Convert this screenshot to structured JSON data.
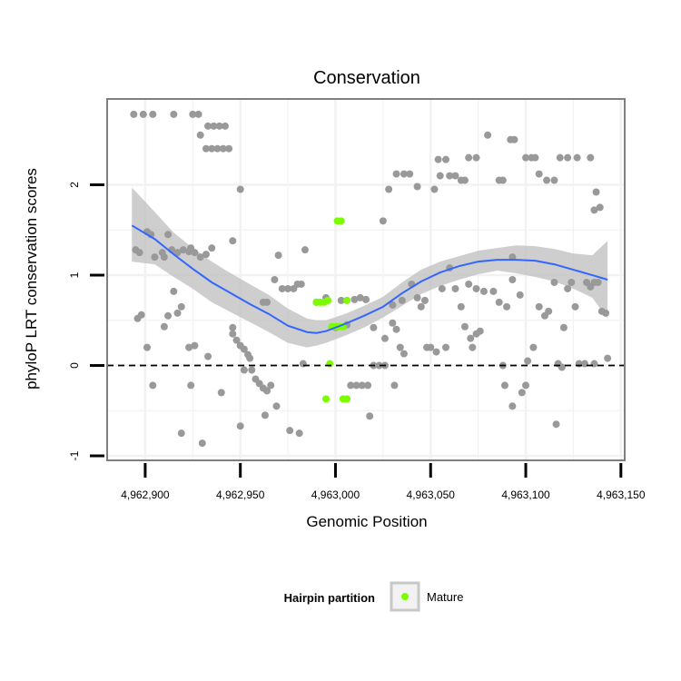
{
  "chart_data": {
    "type": "scatter",
    "title": "Conservation",
    "xlabel": "Genomic Position",
    "ylabel": "phyloP LRT conservation scores",
    "xlim": [
      4962880,
      4963152
    ],
    "ylim": [
      -1.05,
      2.95
    ],
    "x_ticks": [
      {
        "value": 4962900,
        "label": "4,962,900"
      },
      {
        "value": 4962950,
        "label": "4,962,950"
      },
      {
        "value": 4963000,
        "label": "4,963,000"
      },
      {
        "value": 4963050,
        "label": "4,963,050"
      },
      {
        "value": 4963100,
        "label": "4,963,100"
      },
      {
        "value": 4963150,
        "label": "4,963,150"
      }
    ],
    "y_ticks": [
      {
        "value": -1,
        "label": "-1"
      },
      {
        "value": 0,
        "label": "0"
      },
      {
        "value": 1,
        "label": "1"
      },
      {
        "value": 2,
        "label": "2"
      }
    ],
    "grid": true,
    "reference_line": {
      "y": 0,
      "style": "dashed"
    },
    "legend": {
      "title": "Hairpin partition",
      "position": "bottom",
      "items": [
        {
          "label": "Mature",
          "color": "#7CFC00"
        }
      ]
    },
    "colors": {
      "points": "#999999",
      "mature": "#7CFC00",
      "smooth": "#3366FF",
      "ribbon": "#BEBEBE",
      "panel_border": "#7f7f7f",
      "grid": "#F2F2F2"
    },
    "series": [
      {
        "kind": "points",
        "color": "#999999",
        "points": [
          [
            4962894,
            2.78
          ],
          [
            4962899,
            2.78
          ],
          [
            4962904,
            2.78
          ],
          [
            4962915,
            2.78
          ],
          [
            4962925,
            2.78
          ],
          [
            4962928,
            2.78
          ],
          [
            4962933,
            2.65
          ],
          [
            4962936,
            2.65
          ],
          [
            4962939,
            2.65
          ],
          [
            4962942,
            2.65
          ],
          [
            4962929,
            2.55
          ],
          [
            4962932,
            2.4
          ],
          [
            4962935,
            2.4
          ],
          [
            4962938,
            2.4
          ],
          [
            4962941,
            2.4
          ],
          [
            4962944,
            2.4
          ],
          [
            4962950,
            1.95
          ],
          [
            4962946,
            1.38
          ],
          [
            4962912,
            1.45
          ],
          [
            4962924,
            1.3
          ],
          [
            4962935,
            1.3
          ],
          [
            4962895,
            1.28
          ],
          [
            4962897,
            1.25
          ],
          [
            4962901,
            1.48
          ],
          [
            4962903,
            1.45
          ],
          [
            4962909,
            1.25
          ],
          [
            4962914,
            1.28
          ],
          [
            4962917,
            1.25
          ],
          [
            4962920,
            1.28
          ],
          [
            4962923,
            1.26
          ],
          [
            4962926,
            1.25
          ],
          [
            4962929,
            1.2
          ],
          [
            4962932,
            1.23
          ],
          [
            4962905,
            1.2
          ],
          [
            4962910,
            1.2
          ],
          [
            4962912,
            0.55
          ],
          [
            4962917,
            0.58
          ],
          [
            4962915,
            0.82
          ],
          [
            4962896,
            0.52
          ],
          [
            4962898,
            0.56
          ],
          [
            4962901,
            0.2
          ],
          [
            4962904,
            -0.22
          ],
          [
            4962910,
            0.43
          ],
          [
            4962919,
            0.65
          ],
          [
            4962923,
            0.2
          ],
          [
            4962926,
            0.22
          ],
          [
            4962933,
            0.1
          ],
          [
            4962924,
            -0.22
          ],
          [
            4962919,
            -0.75
          ],
          [
            4962930,
            -0.86
          ],
          [
            4962940,
            -0.3
          ],
          [
            4962950,
            -0.67
          ],
          [
            4962946,
            0.35
          ],
          [
            4962948,
            0.28
          ],
          [
            4962950,
            0.22
          ],
          [
            4962952,
            0.18
          ],
          [
            4962955,
            0.08
          ],
          [
            4962946,
            0.42
          ],
          [
            4962954,
            0.12
          ],
          [
            4962956,
            -0.05
          ],
          [
            4962958,
            -0.15
          ],
          [
            4962960,
            -0.2
          ],
          [
            4962962,
            -0.25
          ],
          [
            4962964,
            -0.28
          ],
          [
            4962966,
            -0.22
          ],
          [
            4962952,
            -0.05
          ],
          [
            4962963,
            -0.55
          ],
          [
            4962969,
            -0.45
          ],
          [
            4962962,
            0.7
          ],
          [
            4962964,
            0.7
          ],
          [
            4962968,
            0.95
          ],
          [
            4962972,
            0.85
          ],
          [
            4962975,
            0.85
          ],
          [
            4962978,
            0.85
          ],
          [
            4962982,
            0.9
          ],
          [
            4962984,
            1.28
          ],
          [
            4962970,
            1.22
          ],
          [
            4962980,
            0.9
          ],
          [
            4962976,
            -0.72
          ],
          [
            4962981,
            -0.75
          ],
          [
            4962990,
            0.7
          ],
          [
            4962983,
            0.02
          ],
          [
            4962995,
            0.75
          ],
          [
            4963000,
            0.42
          ],
          [
            4963006,
            0.45
          ],
          [
            4963010,
            0.73
          ],
          [
            4963013,
            0.75
          ],
          [
            4963016,
            0.73
          ],
          [
            4963003,
            0.72
          ],
          [
            4963008,
            -0.22
          ],
          [
            4963011,
            -0.22
          ],
          [
            4963014,
            -0.22
          ],
          [
            4963017,
            -0.22
          ],
          [
            4963018,
            -0.56
          ],
          [
            4963020,
            0.0
          ],
          [
            4963023,
            0.0
          ],
          [
            4963026,
            0.0
          ],
          [
            4963020,
            0.42
          ],
          [
            4963026,
            0.3
          ],
          [
            4963030,
            0.47
          ],
          [
            4963032,
            0.4
          ],
          [
            4963034,
            0.2
          ],
          [
            4963036,
            0.13
          ],
          [
            4963031,
            -0.22
          ],
          [
            4963025,
            1.6
          ],
          [
            4963028,
            1.95
          ],
          [
            4963032,
            2.12
          ],
          [
            4963036,
            2.12
          ],
          [
            4963039,
            2.12
          ],
          [
            4963043,
            1.98
          ],
          [
            4963030,
            0.67
          ],
          [
            4963035,
            0.72
          ],
          [
            4963040,
            0.9
          ],
          [
            4963043,
            0.75
          ],
          [
            4963045,
            0.65
          ],
          [
            4963047,
            0.72
          ],
          [
            4963048,
            0.2
          ],
          [
            4963050,
            0.2
          ],
          [
            4963053,
            0.15
          ],
          [
            4963058,
            0.2
          ],
          [
            4963052,
            1.95
          ],
          [
            4963055,
            2.1
          ],
          [
            4963054,
            2.28
          ],
          [
            4963058,
            2.28
          ],
          [
            4963060,
            2.1
          ],
          [
            4963063,
            2.1
          ],
          [
            4963066,
            2.05
          ],
          [
            4963068,
            2.05
          ],
          [
            4963070,
            2.3
          ],
          [
            4963074,
            2.3
          ],
          [
            4963080,
            2.55
          ],
          [
            4963086,
            2.05
          ],
          [
            4963088,
            2.05
          ],
          [
            4963092,
            2.5
          ],
          [
            4963094,
            2.5
          ],
          [
            4963100,
            2.3
          ],
          [
            4963103,
            2.3
          ],
          [
            4963105,
            2.3
          ],
          [
            4963107,
            2.12
          ],
          [
            4963111,
            2.05
          ],
          [
            4963115,
            2.05
          ],
          [
            4963118,
            2.3
          ],
          [
            4963122,
            2.3
          ],
          [
            4963127,
            2.3
          ],
          [
            4963134,
            2.3
          ],
          [
            4963137,
            1.92
          ],
          [
            4963136,
            1.72
          ],
          [
            4963139,
            1.75
          ],
          [
            4963056,
            0.85
          ],
          [
            4963060,
            1.08
          ],
          [
            4963063,
            0.85
          ],
          [
            4963066,
            0.65
          ],
          [
            4963068,
            0.43
          ],
          [
            4963071,
            0.3
          ],
          [
            4963072,
            0.2
          ],
          [
            4963074,
            0.35
          ],
          [
            4963076,
            0.38
          ],
          [
            4963070,
            0.9
          ],
          [
            4963074,
            0.85
          ],
          [
            4963078,
            0.82
          ],
          [
            4963083,
            0.82
          ],
          [
            4963086,
            0.7
          ],
          [
            4963088,
            0.0
          ],
          [
            4963090,
            0.65
          ],
          [
            4963093,
            0.95
          ],
          [
            4963093,
            1.2
          ],
          [
            4963097,
            0.78
          ],
          [
            4963089,
            -0.22
          ],
          [
            4963093,
            -0.45
          ],
          [
            4963098,
            -0.3
          ],
          [
            4963100,
            -0.22
          ],
          [
            4963101,
            0.05
          ],
          [
            4963104,
            0.2
          ],
          [
            4963107,
            0.65
          ],
          [
            4963110,
            0.55
          ],
          [
            4963112,
            0.6
          ],
          [
            4963115,
            0.92
          ],
          [
            4963117,
            0.02
          ],
          [
            4963119,
            -0.02
          ],
          [
            4963120,
            0.42
          ],
          [
            4963122,
            0.85
          ],
          [
            4963124,
            0.92
          ],
          [
            4963126,
            0.65
          ],
          [
            4963128,
            0.02
          ],
          [
            4963131,
            0.02
          ],
          [
            4963132,
            0.92
          ],
          [
            4963134,
            0.87
          ],
          [
            4963136,
            0.92
          ],
          [
            4963138,
            0.92
          ],
          [
            4963140,
            0.6
          ],
          [
            4963142,
            0.58
          ],
          [
            4963143,
            0.08
          ],
          [
            4963116,
            -0.65
          ],
          [
            4963136,
            0.02
          ]
        ]
      },
      {
        "kind": "points",
        "name": "Mature",
        "color": "#7CFC00",
        "points": [
          [
            4962990,
            0.7
          ],
          [
            4962992,
            0.7
          ],
          [
            4962994,
            0.7
          ],
          [
            4962996,
            0.72
          ],
          [
            4962998,
            0.43
          ],
          [
            4963000,
            0.43
          ],
          [
            4963002,
            0.43
          ],
          [
            4963004,
            0.43
          ],
          [
            4963001,
            1.6
          ],
          [
            4963003,
            1.6
          ],
          [
            4962997,
            0.02
          ],
          [
            4962995,
            -0.37
          ],
          [
            4963004,
            -0.37
          ],
          [
            4963006,
            -0.37
          ],
          [
            4963006,
            0.72
          ]
        ]
      },
      {
        "kind": "smooth",
        "color": "#3366FF",
        "points": [
          [
            4962893,
            1.55
          ],
          [
            4962905,
            1.4
          ],
          [
            4962915,
            1.23
          ],
          [
            4962925,
            1.07
          ],
          [
            4962935,
            0.92
          ],
          [
            4962945,
            0.8
          ],
          [
            4962955,
            0.68
          ],
          [
            4962965,
            0.57
          ],
          [
            4962975,
            0.44
          ],
          [
            4962985,
            0.37
          ],
          [
            4962990,
            0.36
          ],
          [
            4962995,
            0.38
          ],
          [
            4963005,
            0.46
          ],
          [
            4963015,
            0.55
          ],
          [
            4963025,
            0.65
          ],
          [
            4963035,
            0.8
          ],
          [
            4963045,
            0.93
          ],
          [
            4963055,
            1.03
          ],
          [
            4963065,
            1.1
          ],
          [
            4963075,
            1.15
          ],
          [
            4963085,
            1.17
          ],
          [
            4963095,
            1.17
          ],
          [
            4963105,
            1.16
          ],
          [
            4963115,
            1.12
          ],
          [
            4963125,
            1.06
          ],
          [
            4963135,
            1.0
          ],
          [
            4963143,
            0.95
          ]
        ],
        "ci_upper": [
          1.97,
          1.7,
          1.47,
          1.3,
          1.15,
          1.02,
          0.9,
          0.78,
          0.63,
          0.52,
          0.5,
          0.5,
          0.57,
          0.66,
          0.76,
          0.92,
          1.06,
          1.15,
          1.21,
          1.27,
          1.3,
          1.33,
          1.32,
          1.29,
          1.24,
          1.22,
          1.38
        ],
        "ci_lower": [
          1.15,
          1.12,
          0.98,
          0.85,
          0.7,
          0.59,
          0.48,
          0.37,
          0.25,
          0.2,
          0.22,
          0.25,
          0.33,
          0.42,
          0.53,
          0.66,
          0.79,
          0.88,
          0.95,
          1.01,
          1.05,
          1.02,
          0.98,
          0.93,
          0.85,
          0.75,
          0.52
        ]
      }
    ]
  }
}
